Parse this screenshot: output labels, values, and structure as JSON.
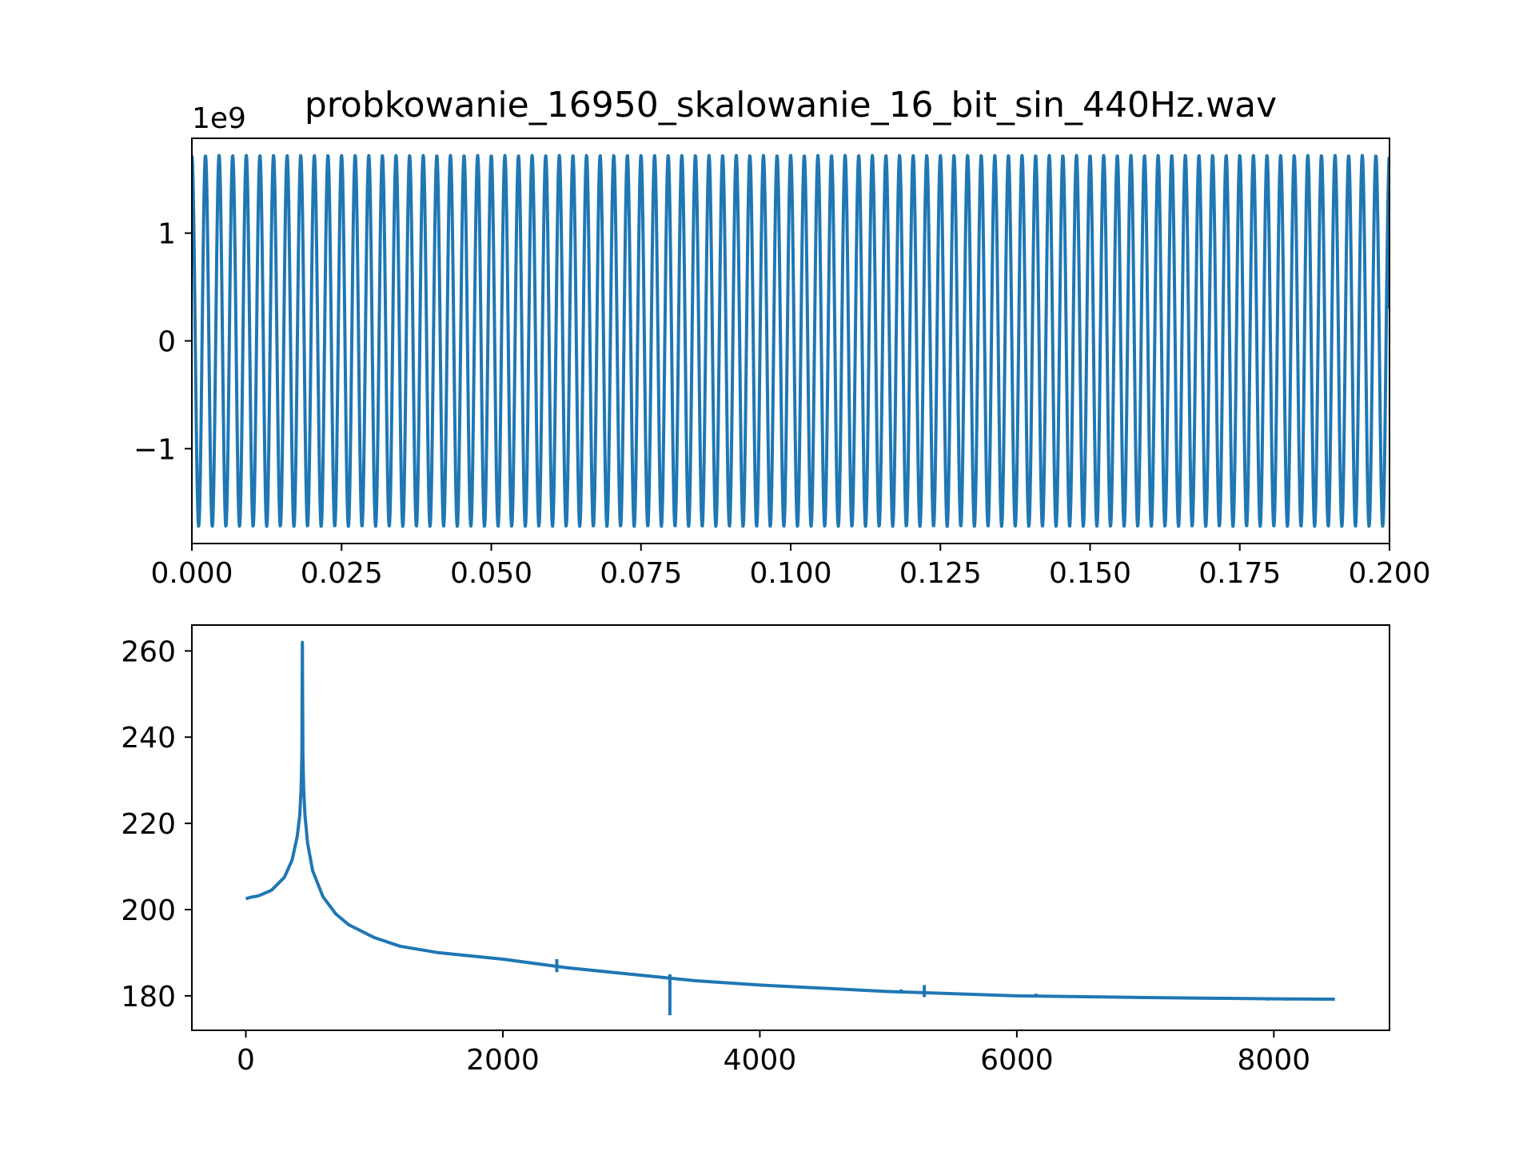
{
  "chart_data": [
    {
      "type": "line",
      "title": "probkowanie_16950_skalowanie_16_bit_sin_440Hz.wav",
      "xlabel": "",
      "ylabel": "",
      "y_offset_label": "1e9",
      "xlim": [
        0.0,
        0.2
      ],
      "ylim": [
        -1.88,
        1.88
      ],
      "grid": false,
      "x_ticks": [
        0.0,
        0.025,
        0.05,
        0.075,
        0.1,
        0.125,
        0.15,
        0.175,
        0.2
      ],
      "x_tick_labels": [
        "0.000",
        "0.025",
        "0.050",
        "0.075",
        "0.100",
        "0.125",
        "0.150",
        "0.175",
        "0.200"
      ],
      "y_ticks": [
        -1,
        0,
        1
      ],
      "y_tick_labels": [
        "−1",
        "0",
        "1"
      ],
      "series": [
        {
          "frequency_hz": 440,
          "sample_rate_hz": 16950,
          "amplitude": 1.72,
          "x_start": 0.0,
          "x_end": 0.2,
          "end_value": 0.3,
          "color": "#1f77b4"
        }
      ]
    },
    {
      "type": "line",
      "title": "",
      "xlabel": "",
      "ylabel": "",
      "xlim": [
        -420,
        8900
      ],
      "ylim": [
        172,
        266
      ],
      "grid": false,
      "x_ticks": [
        0,
        2000,
        4000,
        6000,
        8000
      ],
      "x_tick_labels": [
        "0",
        "2000",
        "4000",
        "6000",
        "8000"
      ],
      "y_ticks": [
        180,
        200,
        220,
        240,
        260
      ],
      "y_tick_labels": [
        "180",
        "200",
        "220",
        "240",
        "260"
      ],
      "series": [
        {
          "color": "#1f77b4",
          "x": [
            0,
            30,
            100,
            200,
            300,
            360,
            400,
            420,
            430,
            436,
            440,
            444,
            450,
            460,
            480,
            520,
            600,
            700,
            800,
            1000,
            1200,
            1500,
            2000,
            2500,
            3000,
            3500,
            4000,
            5000,
            6000,
            7000,
            8000,
            8475
          ],
          "y": [
            202.5,
            202.8,
            203.2,
            204.5,
            207.5,
            211.5,
            217,
            222,
            228,
            236,
            262,
            236,
            228,
            222,
            215.5,
            209,
            203,
            199,
            196.5,
            193.5,
            191.5,
            190,
            188.5,
            186.5,
            185,
            183.5,
            182.5,
            181,
            180,
            179.6,
            179.3,
            179.2
          ],
          "spikes": [
            {
              "x": 2420,
              "low": 185.5,
              "high": 188.5
            },
            {
              "x": 3300,
              "low": 175.5,
              "high": 185
            },
            {
              "x": 5100,
              "low": 180.5,
              "high": 181.5
            },
            {
              "x": 5280,
              "low": 179.7,
              "high": 182.5
            },
            {
              "x": 6150,
              "low": 179.7,
              "high": 180.5
            },
            {
              "x": 7950,
              "low": 178.9,
              "high": 179.7
            },
            {
              "x": 8100,
              "low": 178.9,
              "high": 179.6
            }
          ]
        }
      ]
    }
  ]
}
